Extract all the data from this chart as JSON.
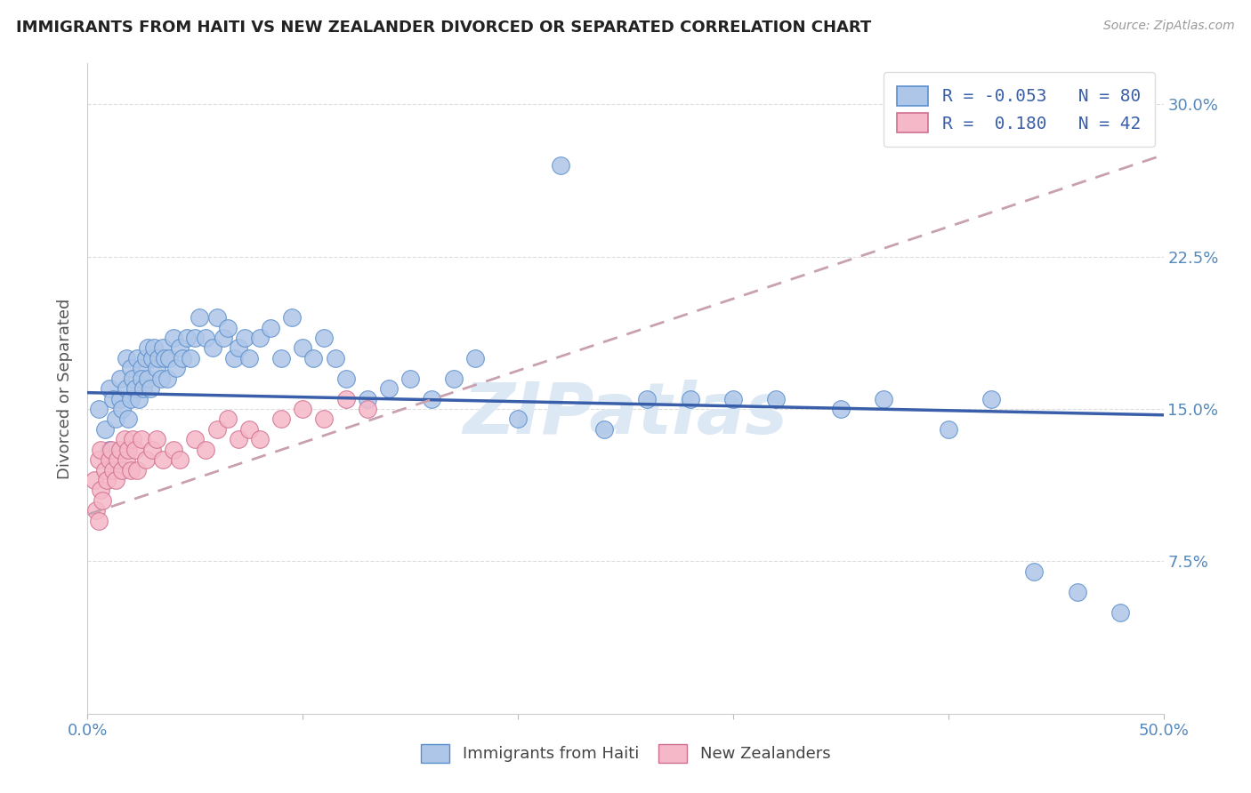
{
  "title": "IMMIGRANTS FROM HAITI VS NEW ZEALANDER DIVORCED OR SEPARATED CORRELATION CHART",
  "source": "Source: ZipAtlas.com",
  "ylabel": "Divorced or Separated",
  "xlim": [
    0.0,
    0.5
  ],
  "ylim": [
    0.0,
    0.32
  ],
  "y_ticks": [
    0.0,
    0.075,
    0.15,
    0.225,
    0.3
  ],
  "y_tick_labels_right": [
    "",
    "7.5%",
    "15.0%",
    "22.5%",
    "30.0%"
  ],
  "x_tick_vals": [
    0.0,
    0.1,
    0.2,
    0.3,
    0.4,
    0.5
  ],
  "legend_R1": "-0.053",
  "legend_N1": "80",
  "legend_R2": "0.180",
  "legend_N2": "42",
  "legend_label1": "Immigrants from Haiti",
  "legend_label2": "New Zealanders",
  "color_blue_fill": "#aec6e8",
  "color_blue_edge": "#5b8fcc",
  "color_pink_fill": "#f5b8c8",
  "color_pink_edge": "#d07090",
  "color_blue_line": "#3a5faa",
  "color_pink_line": "#c8a0b0",
  "color_legend_text": "#3a5faa",
  "color_right_axis": "#5588bb",
  "watermark": "ZIPatlas",
  "blue_x": [
    0.005,
    0.008,
    0.01,
    0.01,
    0.012,
    0.013,
    0.015,
    0.015,
    0.016,
    0.018,
    0.018,
    0.019,
    0.02,
    0.02,
    0.021,
    0.022,
    0.023,
    0.024,
    0.025,
    0.025,
    0.026,
    0.027,
    0.028,
    0.028,
    0.029,
    0.03,
    0.031,
    0.032,
    0.033,
    0.034,
    0.035,
    0.036,
    0.037,
    0.038,
    0.04,
    0.041,
    0.043,
    0.044,
    0.046,
    0.048,
    0.05,
    0.052,
    0.055,
    0.058,
    0.06,
    0.063,
    0.065,
    0.068,
    0.07,
    0.073,
    0.075,
    0.08,
    0.085,
    0.09,
    0.095,
    0.1,
    0.105,
    0.11,
    0.115,
    0.12,
    0.13,
    0.14,
    0.15,
    0.16,
    0.17,
    0.18,
    0.2,
    0.22,
    0.24,
    0.26,
    0.28,
    0.3,
    0.32,
    0.35,
    0.37,
    0.4,
    0.42,
    0.44,
    0.46,
    0.48
  ],
  "blue_y": [
    0.15,
    0.14,
    0.16,
    0.13,
    0.155,
    0.145,
    0.165,
    0.155,
    0.15,
    0.16,
    0.175,
    0.145,
    0.17,
    0.155,
    0.165,
    0.16,
    0.175,
    0.155,
    0.17,
    0.165,
    0.16,
    0.175,
    0.18,
    0.165,
    0.16,
    0.175,
    0.18,
    0.17,
    0.175,
    0.165,
    0.18,
    0.175,
    0.165,
    0.175,
    0.185,
    0.17,
    0.18,
    0.175,
    0.185,
    0.175,
    0.185,
    0.195,
    0.185,
    0.18,
    0.195,
    0.185,
    0.19,
    0.175,
    0.18,
    0.185,
    0.175,
    0.185,
    0.19,
    0.175,
    0.195,
    0.18,
    0.175,
    0.185,
    0.175,
    0.165,
    0.155,
    0.16,
    0.165,
    0.155,
    0.165,
    0.175,
    0.145,
    0.27,
    0.14,
    0.155,
    0.155,
    0.155,
    0.155,
    0.15,
    0.155,
    0.14,
    0.155,
    0.07,
    0.06,
    0.05
  ],
  "pink_x": [
    0.003,
    0.004,
    0.005,
    0.005,
    0.006,
    0.006,
    0.007,
    0.008,
    0.009,
    0.01,
    0.011,
    0.012,
    0.013,
    0.014,
    0.015,
    0.016,
    0.017,
    0.018,
    0.019,
    0.02,
    0.021,
    0.022,
    0.023,
    0.025,
    0.027,
    0.03,
    0.032,
    0.035,
    0.04,
    0.043,
    0.05,
    0.055,
    0.06,
    0.065,
    0.07,
    0.075,
    0.08,
    0.09,
    0.1,
    0.11,
    0.12,
    0.13
  ],
  "pink_y": [
    0.115,
    0.1,
    0.125,
    0.095,
    0.11,
    0.13,
    0.105,
    0.12,
    0.115,
    0.125,
    0.13,
    0.12,
    0.115,
    0.125,
    0.13,
    0.12,
    0.135,
    0.125,
    0.13,
    0.12,
    0.135,
    0.13,
    0.12,
    0.135,
    0.125,
    0.13,
    0.135,
    0.125,
    0.13,
    0.125,
    0.135,
    0.13,
    0.14,
    0.145,
    0.135,
    0.14,
    0.135,
    0.145,
    0.15,
    0.145,
    0.155,
    0.15
  ],
  "blue_line_x0": 0.0,
  "blue_line_x1": 0.5,
  "blue_line_y0": 0.158,
  "blue_line_y1": 0.147,
  "pink_line_x0": 0.0,
  "pink_line_x1": 0.5,
  "pink_line_y0": 0.098,
  "pink_line_y1": 0.275
}
